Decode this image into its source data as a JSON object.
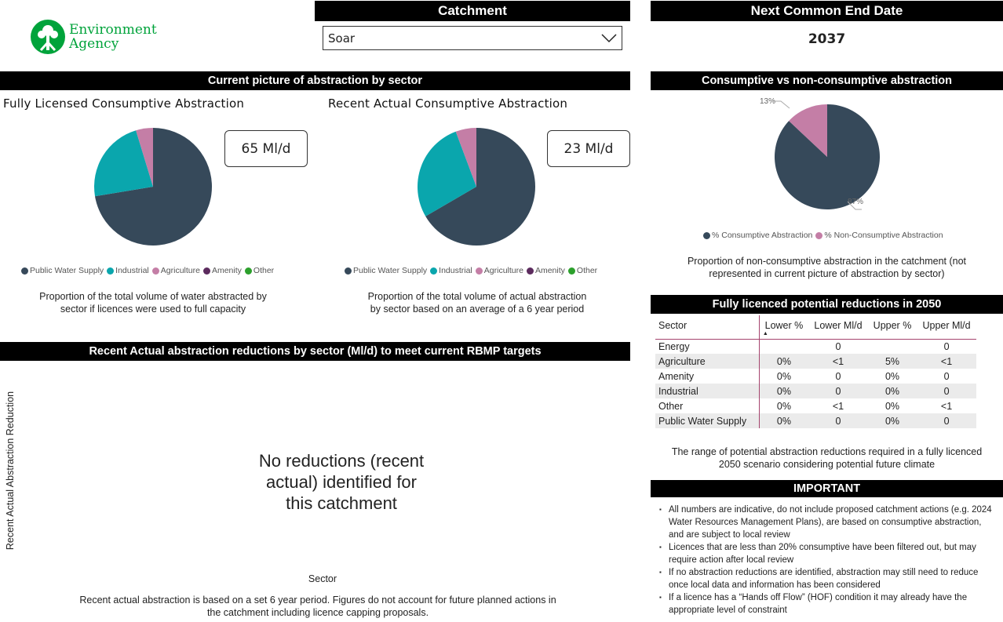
{
  "logo": {
    "line1": "Environment",
    "line2": "Agency"
  },
  "catchment": {
    "title": "Catchment",
    "selected": "Soar"
  },
  "end_date": {
    "title": "Next Common End Date",
    "value": "2037"
  },
  "sector_section": {
    "title": "Current picture of abstraction by sector"
  },
  "legend": [
    {
      "label": "Public Water Supply",
      "color": "#36495a"
    },
    {
      "label": "Industrial",
      "color": "#0aa6ad"
    },
    {
      "label": "Agriculture",
      "color": "#c47ea6"
    },
    {
      "label": "Amenity",
      "color": "#5c2b5e"
    },
    {
      "label": "Other",
      "color": "#2ca02c"
    }
  ],
  "chart_data": [
    {
      "type": "pie",
      "title": "Fully Licensed Consumptive Abstraction",
      "categories": [
        "Public Water Supply",
        "Industrial",
        "Agriculture",
        "Amenity",
        "Other"
      ],
      "values": [
        72.4,
        22.9,
        4.7,
        0,
        0
      ],
      "unit": "%"
    },
    {
      "type": "pie",
      "title": "Recent Actual Consumptive Abstraction",
      "categories": [
        "Public Water Supply",
        "Industrial",
        "Agriculture",
        "Amenity",
        "Other"
      ],
      "values": [
        66.6,
        27.7,
        5.7,
        0,
        0
      ],
      "unit": "%"
    },
    {
      "type": "pie",
      "title": "Consumptive vs non-consumptive abstraction",
      "categories": [
        "% Consumptive Abstraction",
        "% Non-Consumptive Abstraction"
      ],
      "values": [
        87,
        13
      ],
      "data_labels": [
        "87%",
        "13%"
      ],
      "colors": [
        "#36495a",
        "#c47ea6"
      ]
    }
  ],
  "pie1": {
    "title": "Fully Licensed Consumptive Abstraction",
    "kpi": "65 Ml/d",
    "caption1": "Proportion of the total volume of water abstracted by",
    "caption2": "sector if licences were used to full capacity"
  },
  "pie2": {
    "title": "Recent Actual Consumptive Abstraction",
    "kpi": "23 Ml/d",
    "caption1": "Proportion of the total volume of actual abstraction",
    "caption2": "by sector based on an average of a 6 year period"
  },
  "reductions": {
    "title": "Recent Actual abstraction reductions by sector (Ml/d) to meet current RBMP targets",
    "ylabel": "Recent Actual Abstraction Reduction",
    "xlabel": "Sector",
    "message1": "No reductions (recent",
    "message2": "actual) identified for",
    "message3": "this catchment",
    "caption1": "Recent actual abstraction is based on a set 6 year period. Figures do not account for future planned actions in",
    "caption2": "the catchment including licence capping proposals."
  },
  "consumptive": {
    "title": "Consumptive vs non-consumptive abstraction",
    "label_cons": "87%",
    "label_non": "13%",
    "legend_cons": "% Consumptive Abstraction",
    "legend_non": "% Non-Consumptive Abstraction",
    "caption1": "Proportion of non-consumptive abstraction in the catchment (not",
    "caption2": "represented in current picture of abstraction by sector)"
  },
  "table": {
    "title": "Fully licenced potential reductions in 2050",
    "headers": [
      "Sector",
      "Lower %",
      "Lower Ml/d",
      "Upper %",
      "Upper Ml/d"
    ],
    "rows": [
      [
        "Energy",
        "",
        "0",
        "",
        "0"
      ],
      [
        "Agriculture",
        "0%",
        "<1",
        "5%",
        "<1"
      ],
      [
        "Amenity",
        "0%",
        "0",
        "0%",
        "0"
      ],
      [
        "Industrial",
        "0%",
        "0",
        "0%",
        "0"
      ],
      [
        "Other",
        "0%",
        "<1",
        "0%",
        "<1"
      ],
      [
        "Public Water Supply",
        "0%",
        "0",
        "0%",
        "0"
      ]
    ],
    "caption1": "The range of potential abstraction reductions required in a fully licenced",
    "caption2": "2050 scenario considering potential future climate"
  },
  "important": {
    "title": "IMPORTANT",
    "bullets": [
      "All numbers are indicative, do not include proposed catchment actions (e.g. 2024 Water Resources Management Plans), are based on consumptive abstraction, and are subject to local review",
      "Licences that are less than 20% consumptive have been filtered out, but may require action after local review",
      "If no abstraction reductions are identified, abstraction may still need to reduce once local data and information has been considered",
      "If a licence has a “Hands off Flow” (HOF) condition it may already have the appropriate level of constraint"
    ]
  }
}
